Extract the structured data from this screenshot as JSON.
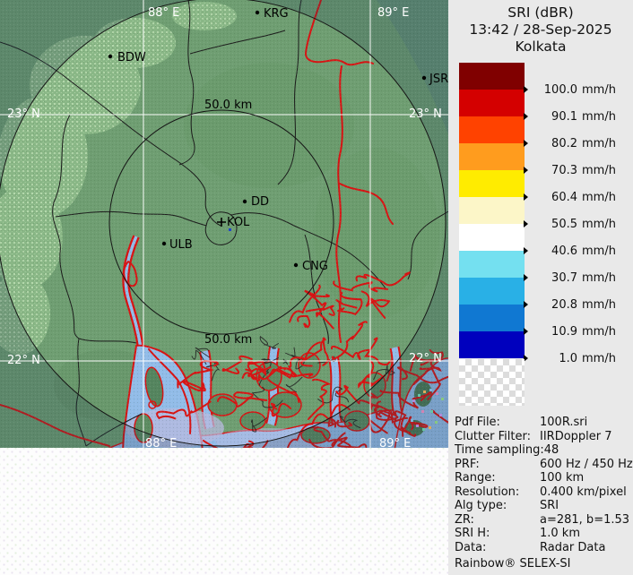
{
  "panel": {
    "title_line1": "SRI (dBR)",
    "title_line2": "13:42 / 28-Sep-2025",
    "title_line3": "Kolkata",
    "legend": {
      "unit": "mm/h",
      "bands": [
        {
          "value": "100.0",
          "color": "#800000"
        },
        {
          "value": "90.1",
          "color": "#d40000"
        },
        {
          "value": "80.2",
          "color": "#ff4200"
        },
        {
          "value": "70.3",
          "color": "#ff9c1e"
        },
        {
          "value": "60.4",
          "color": "#ffec00"
        },
        {
          "value": "50.5",
          "color": "#fcf6c8"
        },
        {
          "value": "40.6",
          "color": "#ffffff"
        },
        {
          "value": "30.7",
          "color": "#74e0f0"
        },
        {
          "value": "20.8",
          "color": "#29b0e6"
        },
        {
          "value": "10.9",
          "color": "#1078d2"
        },
        {
          "value": "1.0",
          "color": "#0000be"
        }
      ]
    },
    "meta": {
      "rows": [
        {
          "label": "Pdf File:",
          "value": "100R.sri"
        },
        {
          "label": "Clutter Filter:",
          "value": "IIRDoppler 7"
        },
        {
          "label": "Time sampling:",
          "value": "48"
        },
        {
          "label": "PRF:",
          "value": "600 Hz / 450 Hz"
        },
        {
          "label": "Range:",
          "value": "100 km"
        },
        {
          "label": "Resolution:",
          "value": "0.400 km/pixel"
        },
        {
          "label": "Alg type:",
          "value": "SRI"
        },
        {
          "label": "ZR:",
          "value": "a=281, b=1.53"
        },
        {
          "label": "SRI H:",
          "value": "1.0 km"
        },
        {
          "label": "Data:",
          "value": "Radar Data"
        }
      ],
      "footer": "Rainbow® SELEX-SI"
    }
  },
  "map": {
    "grid": {
      "lon_left": "88° E",
      "lon_right": "89° E",
      "lat_top": "23° N",
      "lat_bottom": "22° N"
    },
    "range_ring_label": "50.0 km",
    "cities": [
      {
        "name": "BDW"
      },
      {
        "name": "KRG"
      },
      {
        "name": "JSR"
      },
      {
        "name": "DD"
      },
      {
        "name": "KOL"
      },
      {
        "name": "ULB"
      },
      {
        "name": "CNG"
      }
    ],
    "colors": {
      "land_in_range": "#6f9e72",
      "land_out_of_range": "#5b7f6e",
      "water": "#92bce8",
      "river": "#d81414",
      "boundary": "#1b1b1b",
      "grid_line": "#ffffff",
      "echo_light": "#a3d09b"
    }
  }
}
